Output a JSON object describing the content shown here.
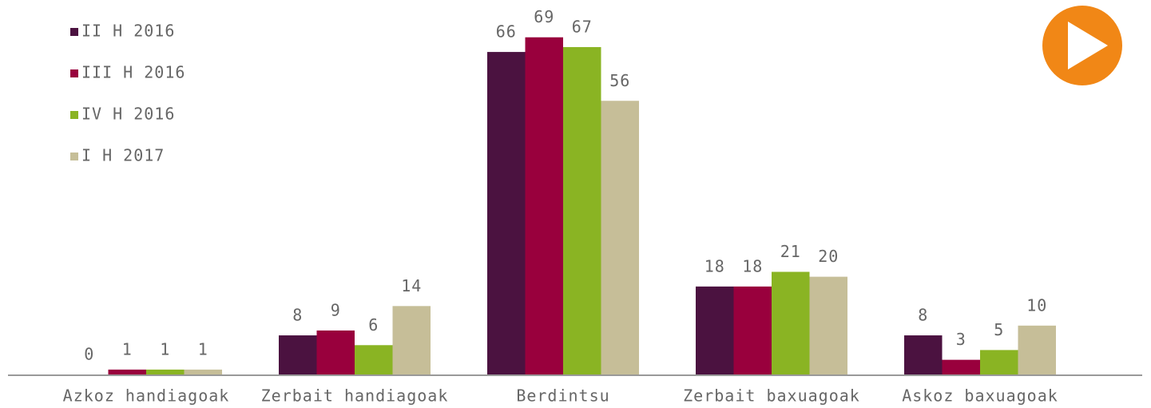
{
  "chart_data": {
    "type": "bar",
    "categories": [
      "Azkoz handiagoak",
      "Zerbait handiagoak",
      "Berdintsu",
      "Zerbait baxuagoak",
      "Askoz baxuagoak"
    ],
    "series": [
      {
        "name": "II H 2016",
        "color": "#4b1240",
        "values": [
          0,
          8,
          66,
          18,
          8
        ]
      },
      {
        "name": "III H 2016",
        "color": "#99003d",
        "values": [
          1,
          9,
          69,
          18,
          3
        ]
      },
      {
        "name": "IV H 2016",
        "color": "#8ab423",
        "values": [
          1,
          6,
          67,
          21,
          5
        ]
      },
      {
        "name": "I H 2017",
        "color": "#c6be98",
        "values": [
          1,
          14,
          56,
          20,
          10
        ]
      }
    ],
    "legend": "top-left"
  }
}
